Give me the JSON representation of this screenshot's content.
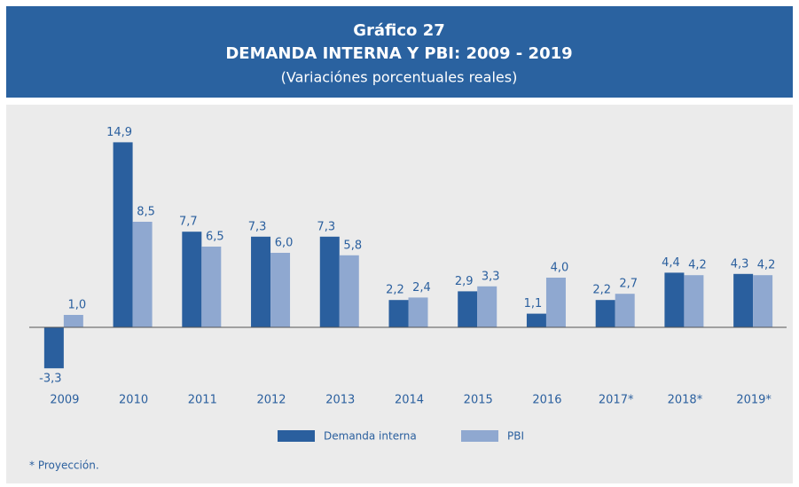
{
  "chart_data": {
    "type": "bar",
    "title": "Gráfico 27",
    "subtitle": "DEMANDA INTERNA Y PBI: 2009 - 2019",
    "note": "(Variaciónes porcentuales reales)",
    "footnote": "* Proyección.",
    "categories": [
      "2009",
      "2010",
      "2011",
      "2012",
      "2013",
      "2014",
      "2015",
      "2016",
      "2017*",
      "2018*",
      "2019*"
    ],
    "series": [
      {
        "name": "Demanda interna",
        "color": "#2a5f9e",
        "values": [
          -3.3,
          14.9,
          7.7,
          7.3,
          7.3,
          2.2,
          2.9,
          1.1,
          2.2,
          4.4,
          4.3
        ],
        "value_labels": [
          "-3,3",
          "14,9",
          "7,7",
          "7,3",
          "7,3",
          "2,2",
          "2,9",
          "1,1",
          "2,2",
          "4,4",
          "4,3"
        ]
      },
      {
        "name": "PBI",
        "color": "#8fa8d0",
        "values": [
          1.0,
          8.5,
          6.5,
          6.0,
          5.8,
          2.4,
          3.3,
          4.0,
          2.7,
          4.2,
          4.2
        ],
        "value_labels": [
          "1,0",
          "8,5",
          "6,5",
          "6,0",
          "5,8",
          "2,4",
          "3,3",
          "4,0",
          "2,7",
          "4,2",
          "4,2"
        ]
      }
    ],
    "ylim": [
      -5,
      17
    ]
  }
}
